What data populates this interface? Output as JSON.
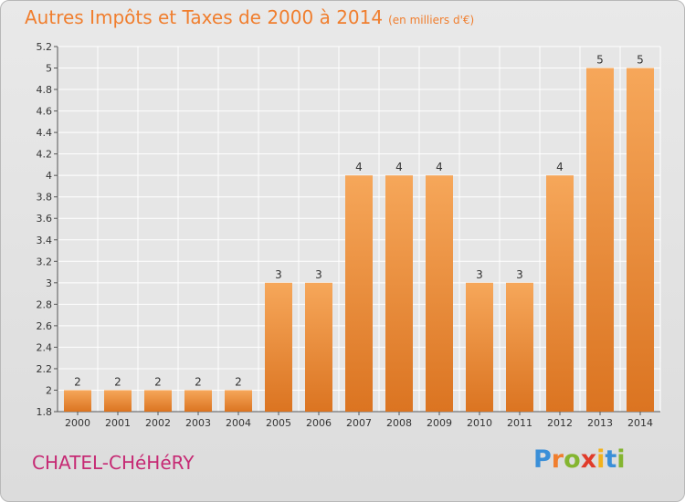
{
  "header": {
    "title": "Autres Impôts et Taxes de 2000 à 2014",
    "unit": "(en milliers d'€)"
  },
  "footer": {
    "city": "CHATEL-CHéHéRY",
    "brand_letters": [
      {
        "ch": "P",
        "color": "#3a8fd8"
      },
      {
        "ch": "r",
        "color": "#f07e2e"
      },
      {
        "ch": "o",
        "color": "#84b530"
      },
      {
        "ch": "x",
        "color": "#e03b2a"
      },
      {
        "ch": "i",
        "color": "#f2b21c"
      },
      {
        "ch": "t",
        "color": "#3a8fd8"
      },
      {
        "ch": "i",
        "color": "#84b530"
      }
    ]
  },
  "colors": {
    "bar_light": "#f6a75a",
    "bar_dark": "#db7421",
    "title": "#f07e2e",
    "city": "#c62a74",
    "grid": "#ffffff",
    "axis": "#555555"
  },
  "chart_data": {
    "type": "bar",
    "title": "Autres Impôts et Taxes de 2000 à 2014",
    "subtitle": "(en milliers d'€)",
    "categories": [
      "2000",
      "2001",
      "2002",
      "2003",
      "2004",
      "2005",
      "2006",
      "2007",
      "2008",
      "2009",
      "2010",
      "2011",
      "2012",
      "2013",
      "2014"
    ],
    "values": [
      2,
      2,
      2,
      2,
      2,
      3,
      3,
      4,
      4,
      4,
      3,
      3,
      4,
      5,
      5
    ],
    "data_labels": [
      "2",
      "2",
      "2",
      "2",
      "2",
      "3",
      "3",
      "4",
      "4",
      "4",
      "3",
      "3",
      "4",
      "5",
      "5"
    ],
    "ylim": [
      1.8,
      5.2
    ],
    "yticks": [
      1.8,
      2,
      2.2,
      2.4,
      2.6,
      2.8,
      3,
      3.2,
      3.4,
      3.6,
      3.8,
      4,
      4.2,
      4.4,
      4.6,
      4.8,
      5,
      5.2
    ],
    "ytick_labels": [
      "1.8",
      "2",
      "2.2",
      "2.4",
      "2.6",
      "2.8",
      "3",
      "3.2",
      "3.4",
      "3.6",
      "3.8",
      "4",
      "4.2",
      "4.4",
      "4.6",
      "4.8",
      "5",
      "5.2"
    ],
    "grid": true,
    "xlabel": "",
    "ylabel": ""
  }
}
